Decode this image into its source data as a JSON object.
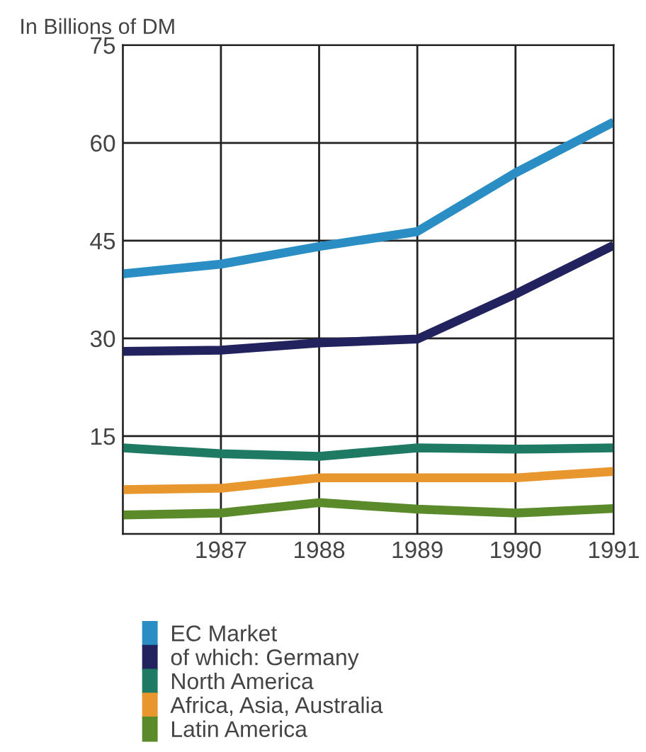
{
  "chart_data": {
    "type": "line",
    "subtitle": "In Billions of DM",
    "x": [
      1986,
      1987,
      1988,
      1989,
      1990,
      1991
    ],
    "series": [
      {
        "name": "EC Market",
        "color": "#2a8ec4",
        "values": [
          39.9,
          41.4,
          44.1,
          46.4,
          55.4,
          63.2
        ]
      },
      {
        "name": "of which: Germany",
        "color": "#22235e",
        "values": [
          28.0,
          28.2,
          29.3,
          29.9,
          36.8,
          44.3
        ]
      },
      {
        "name": "North America",
        "color": "#1f7a63",
        "values": [
          13.2,
          12.3,
          11.9,
          13.2,
          13.0,
          13.2
        ]
      },
      {
        "name": "Africa, Asia, Australia",
        "color": "#e8962e",
        "values": [
          6.8,
          7.0,
          8.6,
          8.6,
          8.6,
          9.6
        ]
      },
      {
        "name": "Latin America",
        "color": "#5a8a2a",
        "values": [
          2.9,
          3.2,
          4.8,
          3.8,
          3.2,
          3.9
        ]
      }
    ],
    "xlim": [
      1986,
      1991
    ],
    "xticks": [
      {
        "value": 1986,
        "label": null
      },
      1987,
      1988,
      1989,
      1990,
      1991
    ],
    "ylim": [
      0,
      75
    ],
    "yticks": [
      {
        "value": 0,
        "label": null
      },
      15,
      30,
      45,
      60,
      75
    ],
    "grid": true,
    "legend": "bottom",
    "marker": "none",
    "line_style": "solid"
  }
}
